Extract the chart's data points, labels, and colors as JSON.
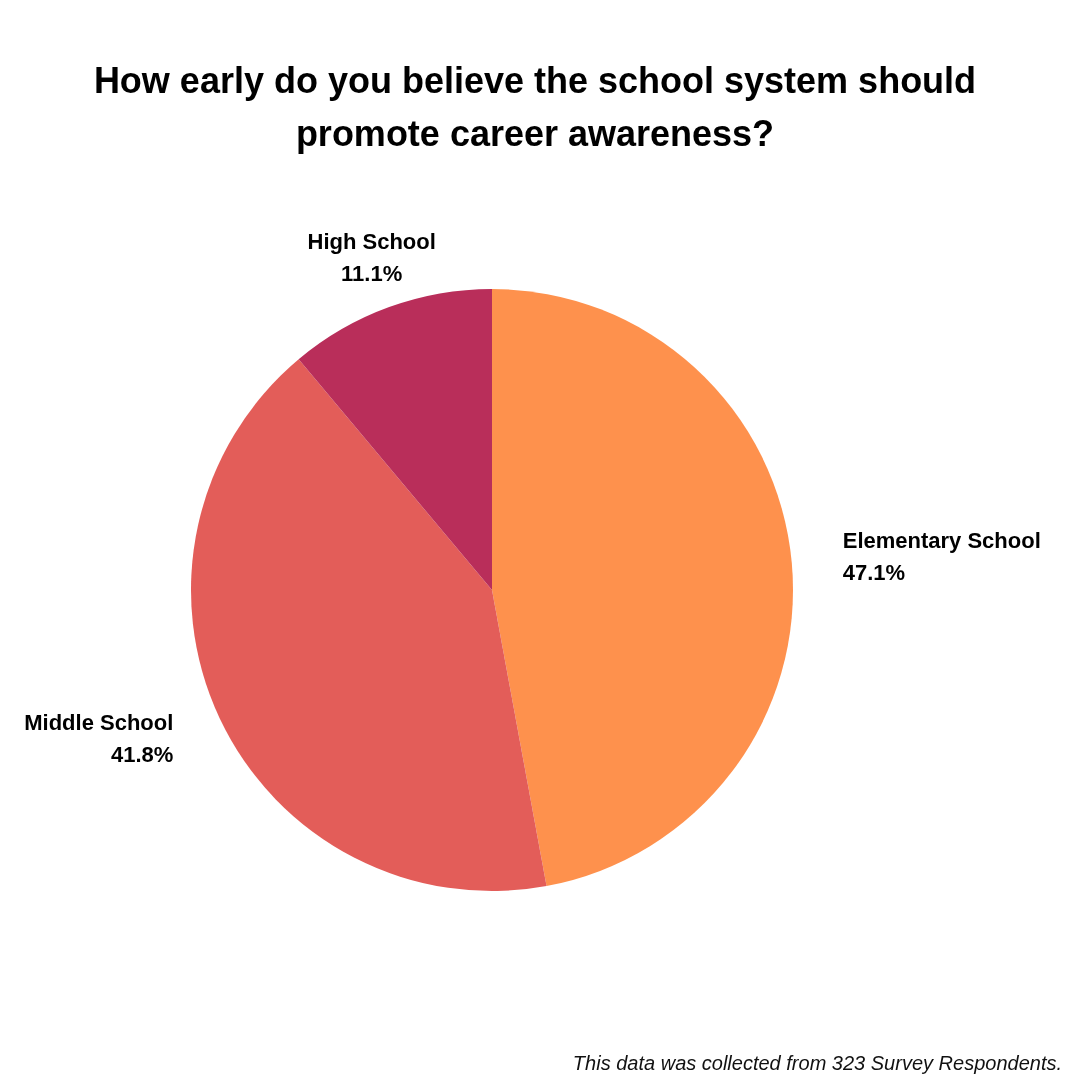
{
  "chart_data": {
    "type": "pie",
    "title": "How early do you believe the school system should promote career awareness?",
    "categories": [
      "Elementary School",
      "Middle School",
      "High School"
    ],
    "values": [
      47.1,
      41.8,
      11.1
    ],
    "colors": [
      "#fe914d",
      "#e35d59",
      "#b92e5a"
    ],
    "value_labels": [
      "47.1%",
      "41.8%",
      "11.1%"
    ],
    "annotations": [
      "This data was collected from 323 Survey Respondents."
    ]
  }
}
